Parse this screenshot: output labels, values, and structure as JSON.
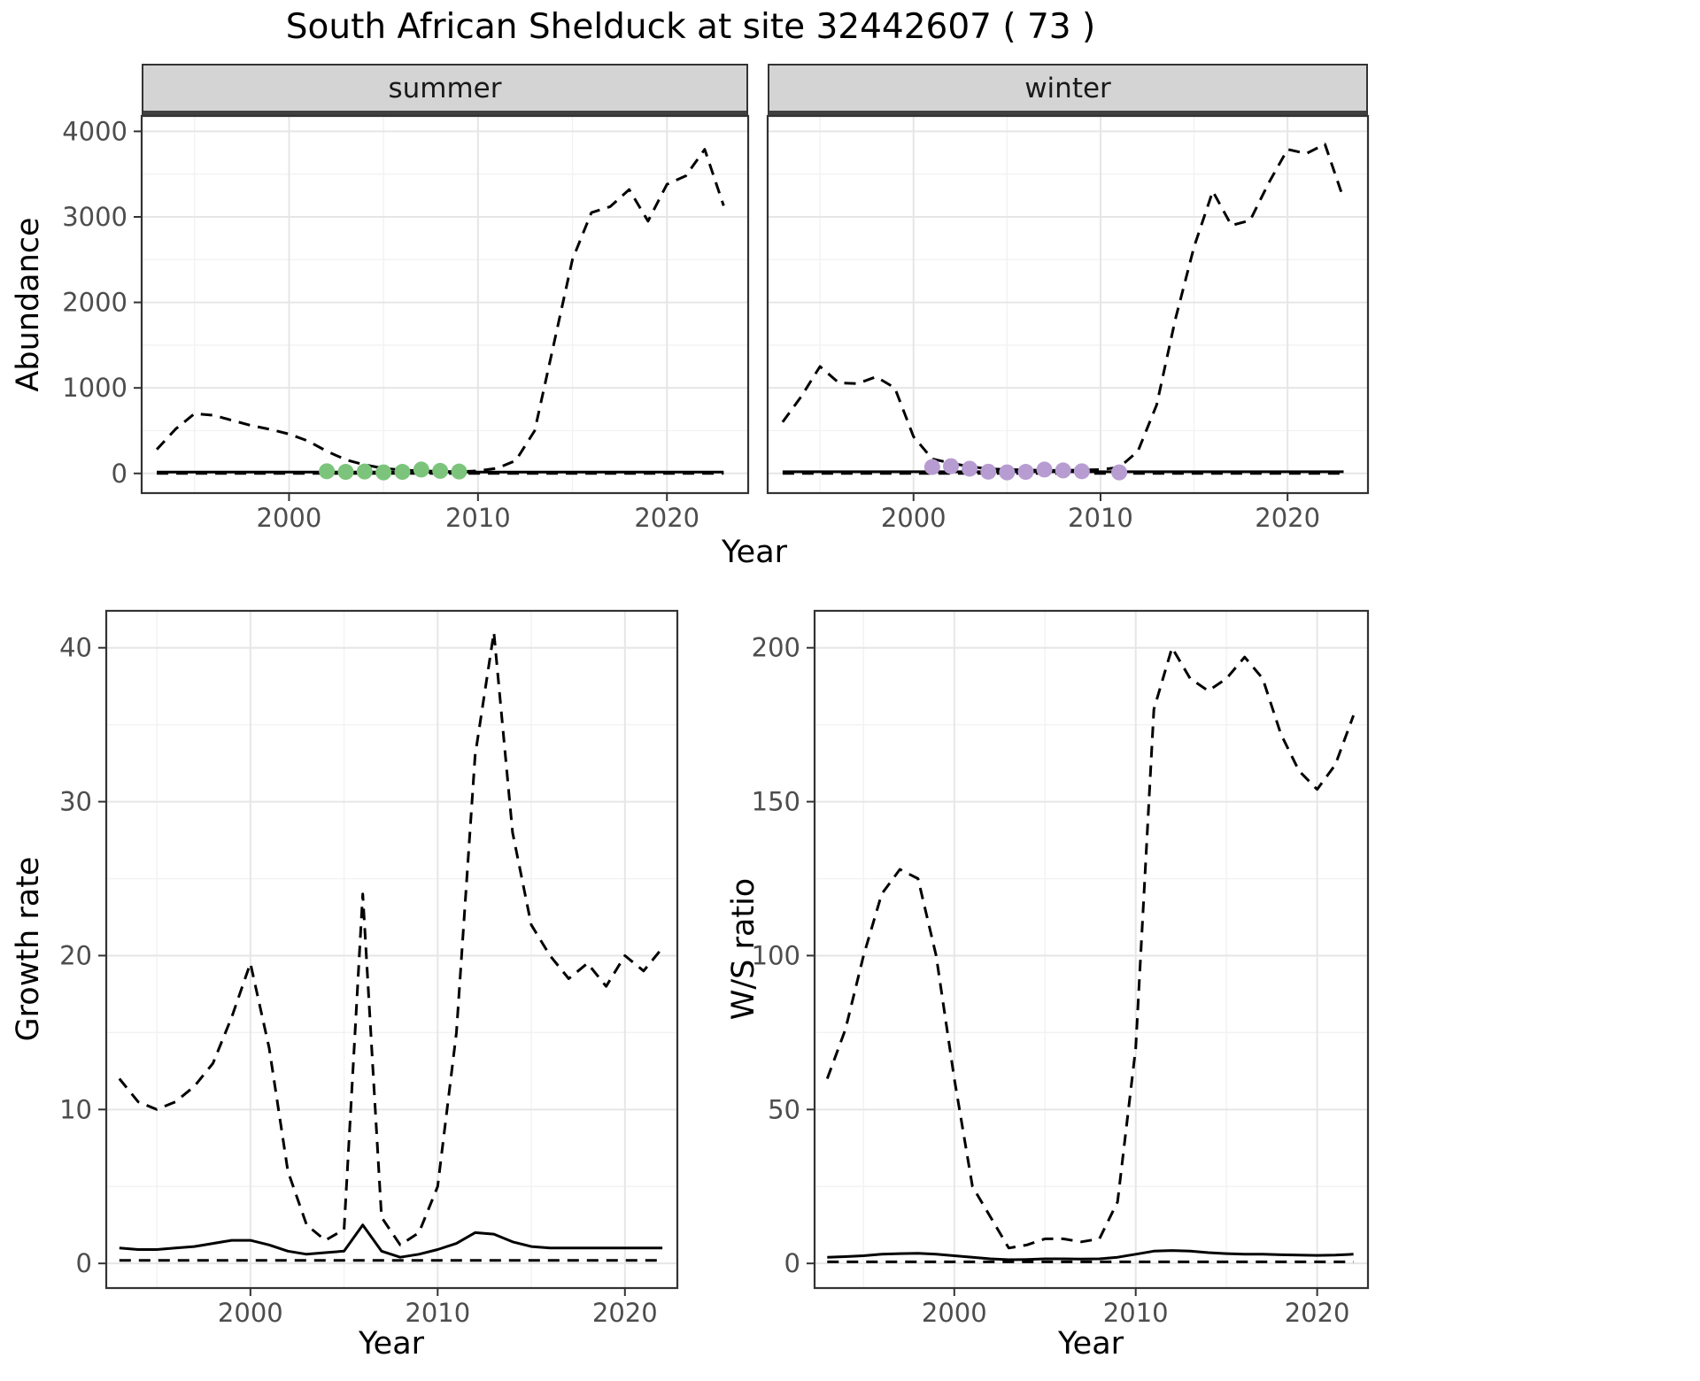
{
  "title": "South African Shelduck at site 32442607 ( 73 )",
  "axes": {
    "abundance_label": "Abundance",
    "year_label": "Year",
    "growth_label": "Growth rate",
    "ws_label": "W/S ratio"
  },
  "facets": {
    "summer": "summer",
    "winter": "winter"
  },
  "colors": {
    "line": "#000000",
    "summer_points": "#7cc47c",
    "winter_points": "#b79cd2",
    "grid_major": "#e6e6e6",
    "grid_minor": "#f2f2f2",
    "panel_border": "#333333",
    "strip_bg": "#d4d4d4",
    "tick_text": "#4d4d4d"
  },
  "chart_data": [
    {
      "id": "abundance-summer",
      "type": "line",
      "title": "summer",
      "xlabel": "Year",
      "ylabel": "Abundance",
      "xlim": [
        1992.2,
        2024.3
      ],
      "ylim": [
        -230,
        4180
      ],
      "xticks": [
        2000,
        2010,
        2020
      ],
      "yticks": [
        0,
        1000,
        2000,
        3000,
        4000
      ],
      "x": [
        1993,
        1994,
        1995,
        1996,
        1997,
        1998,
        1999,
        2000,
        2001,
        2002,
        2003,
        2004,
        2005,
        2006,
        2007,
        2008,
        2009,
        2010,
        2011,
        2012,
        2013,
        2014,
        2015,
        2016,
        2017,
        2018,
        2019,
        2020,
        2021,
        2022,
        2023
      ],
      "series": [
        {
          "name": "upper-ci",
          "style": "dashed",
          "y": [
            280,
            520,
            700,
            680,
            620,
            560,
            515,
            460,
            380,
            260,
            160,
            100,
            60,
            40,
            30,
            25,
            20,
            30,
            60,
            150,
            500,
            1500,
            2500,
            3050,
            3120,
            3320,
            2950,
            3380,
            3480,
            3790,
            3130
          ]
        },
        {
          "name": "mean",
          "style": "solid",
          "y": [
            15,
            15,
            15,
            15,
            15,
            15,
            15,
            15,
            15,
            15,
            15,
            15,
            15,
            15,
            15,
            15,
            15,
            15,
            15,
            15,
            15,
            15,
            15,
            15,
            15,
            15,
            15,
            15,
            15,
            15,
            15
          ]
        },
        {
          "name": "lower-ci",
          "style": "dashed",
          "y": [
            0,
            0,
            0,
            0,
            0,
            0,
            0,
            0,
            0,
            0,
            0,
            0,
            0,
            0,
            0,
            0,
            0,
            0,
            0,
            0,
            0,
            0,
            0,
            0,
            0,
            0,
            0,
            0,
            0,
            0,
            0
          ]
        }
      ],
      "points": {
        "name": "observed-count-points",
        "color": "#7cc47c",
        "x": [
          2002,
          2003,
          2004,
          2005,
          2006,
          2007,
          2008,
          2009
        ],
        "y": [
          25,
          18,
          22,
          12,
          18,
          45,
          30,
          22
        ]
      }
    },
    {
      "id": "abundance-winter",
      "type": "line",
      "title": "winter",
      "xlabel": "Year",
      "ylabel": "Abundance",
      "xlim": [
        1992.2,
        2024.3
      ],
      "ylim": [
        -230,
        4180
      ],
      "xticks": [
        2000,
        2010,
        2020
      ],
      "yticks": [
        0,
        1000,
        2000,
        3000,
        4000
      ],
      "x": [
        1993,
        1994,
        1995,
        1996,
        1997,
        1998,
        1999,
        2000,
        2001,
        2002,
        2003,
        2004,
        2005,
        2006,
        2007,
        2008,
        2009,
        2010,
        2011,
        2012,
        2013,
        2014,
        2015,
        2016,
        2017,
        2018,
        2019,
        2020,
        2021,
        2022,
        2023
      ],
      "series": [
        {
          "name": "upper-ci",
          "style": "dashed",
          "y": [
            600,
            900,
            1250,
            1060,
            1050,
            1130,
            1000,
            430,
            170,
            120,
            80,
            55,
            45,
            40,
            35,
            35,
            40,
            45,
            70,
            260,
            800,
            1800,
            2650,
            3300,
            2900,
            2960,
            3400,
            3790,
            3740,
            3850,
            3210
          ]
        },
        {
          "name": "mean",
          "style": "solid",
          "y": [
            20,
            20,
            20,
            20,
            20,
            20,
            20,
            20,
            20,
            20,
            20,
            20,
            20,
            20,
            20,
            20,
            20,
            20,
            20,
            20,
            20,
            20,
            20,
            20,
            20,
            20,
            20,
            20,
            20,
            20,
            20
          ]
        },
        {
          "name": "lower-ci",
          "style": "dashed",
          "y": [
            0,
            0,
            0,
            0,
            0,
            0,
            0,
            0,
            0,
            0,
            0,
            0,
            0,
            0,
            0,
            0,
            0,
            0,
            0,
            0,
            0,
            0,
            0,
            0,
            0,
            0,
            0,
            0,
            0,
            0,
            0
          ]
        }
      ],
      "points": {
        "name": "observed-count-points",
        "color": "#b79cd2",
        "x": [
          2001,
          2002,
          2003,
          2004,
          2005,
          2006,
          2007,
          2008,
          2009,
          2011
        ],
        "y": [
          75,
          85,
          55,
          20,
          12,
          18,
          45,
          35,
          25,
          12
        ]
      }
    },
    {
      "id": "growth-rate",
      "type": "line",
      "title": "Growth rate",
      "xlabel": "Year",
      "ylabel": "Growth rate",
      "xlim": [
        1992.3,
        2022.8
      ],
      "ylim": [
        -1.6,
        42.4
      ],
      "xticks": [
        2000,
        2010,
        2020
      ],
      "yticks": [
        0,
        10,
        20,
        30,
        40
      ],
      "x": [
        1993,
        1994,
        1995,
        1996,
        1997,
        1998,
        1999,
        2000,
        2001,
        2002,
        2003,
        2004,
        2005,
        2006,
        2007,
        2008,
        2009,
        2010,
        2011,
        2012,
        2013,
        2014,
        2015,
        2016,
        2017,
        2018,
        2019,
        2020,
        2021,
        2022
      ],
      "series": [
        {
          "name": "upper-ci",
          "style": "dashed",
          "y": [
            12,
            10.5,
            10,
            10.5,
            11.5,
            13,
            16,
            19.5,
            14,
            6,
            2.5,
            1.5,
            2.2,
            24,
            3,
            1.2,
            2,
            5,
            15,
            33,
            41,
            28,
            22,
            20,
            18.5,
            19.5,
            18,
            20,
            19,
            20.5
          ]
        },
        {
          "name": "mean",
          "style": "solid",
          "y": [
            1,
            0.9,
            0.9,
            1,
            1.1,
            1.3,
            1.5,
            1.5,
            1.2,
            0.8,
            0.6,
            0.7,
            0.8,
            2.5,
            0.8,
            0.4,
            0.6,
            0.9,
            1.3,
            2,
            1.9,
            1.4,
            1.1,
            1,
            1,
            1,
            1,
            1,
            1,
            1
          ]
        },
        {
          "name": "lower-ci",
          "style": "dashed",
          "y": [
            0.2,
            0.2,
            0.2,
            0.2,
            0.2,
            0.2,
            0.2,
            0.2,
            0.2,
            0.2,
            0.2,
            0.2,
            0.2,
            0.2,
            0.2,
            0.2,
            0.2,
            0.2,
            0.2,
            0.2,
            0.2,
            0.2,
            0.2,
            0.2,
            0.2,
            0.2,
            0.2,
            0.2,
            0.2,
            0.2
          ]
        }
      ]
    },
    {
      "id": "ws-ratio",
      "type": "line",
      "title": "W/S ratio",
      "xlabel": "Year",
      "ylabel": "W/S ratio",
      "xlim": [
        1992.3,
        2022.8
      ],
      "ylim": [
        -8,
        212
      ],
      "xticks": [
        2000,
        2010,
        2020
      ],
      "yticks": [
        0,
        50,
        100,
        150,
        200
      ],
      "x": [
        1993,
        1994,
        1995,
        1996,
        1997,
        1998,
        1999,
        2000,
        2001,
        2002,
        2003,
        2004,
        2005,
        2006,
        2007,
        2008,
        2009,
        2010,
        2011,
        2012,
        2013,
        2014,
        2015,
        2016,
        2017,
        2018,
        2019,
        2020,
        2021,
        2022
      ],
      "series": [
        {
          "name": "upper-ci",
          "style": "dashed",
          "y": [
            60,
            76,
            100,
            120,
            128,
            125,
            100,
            60,
            25,
            15,
            5,
            6,
            8,
            8,
            7,
            8,
            20,
            70,
            180,
            200,
            190,
            186,
            190,
            197,
            190,
            172,
            160,
            154,
            162,
            178
          ]
        },
        {
          "name": "mean",
          "style": "solid",
          "y": [
            2,
            2.2,
            2.5,
            3,
            3.2,
            3.3,
            3,
            2.5,
            2,
            1.5,
            1.2,
            1.3,
            1.5,
            1.5,
            1.4,
            1.5,
            2,
            3,
            4,
            4.2,
            4,
            3.5,
            3.2,
            3,
            3,
            2.8,
            2.7,
            2.6,
            2.7,
            3
          ]
        },
        {
          "name": "lower-ci",
          "style": "dashed",
          "y": [
            0.5,
            0.5,
            0.5,
            0.5,
            0.5,
            0.5,
            0.5,
            0.5,
            0.5,
            0.5,
            0.5,
            0.5,
            0.5,
            0.5,
            0.5,
            0.5,
            0.5,
            0.5,
            0.5,
            0.5,
            0.5,
            0.5,
            0.5,
            0.5,
            0.5,
            0.5,
            0.5,
            0.5,
            0.5,
            0.5
          ]
        }
      ]
    }
  ]
}
